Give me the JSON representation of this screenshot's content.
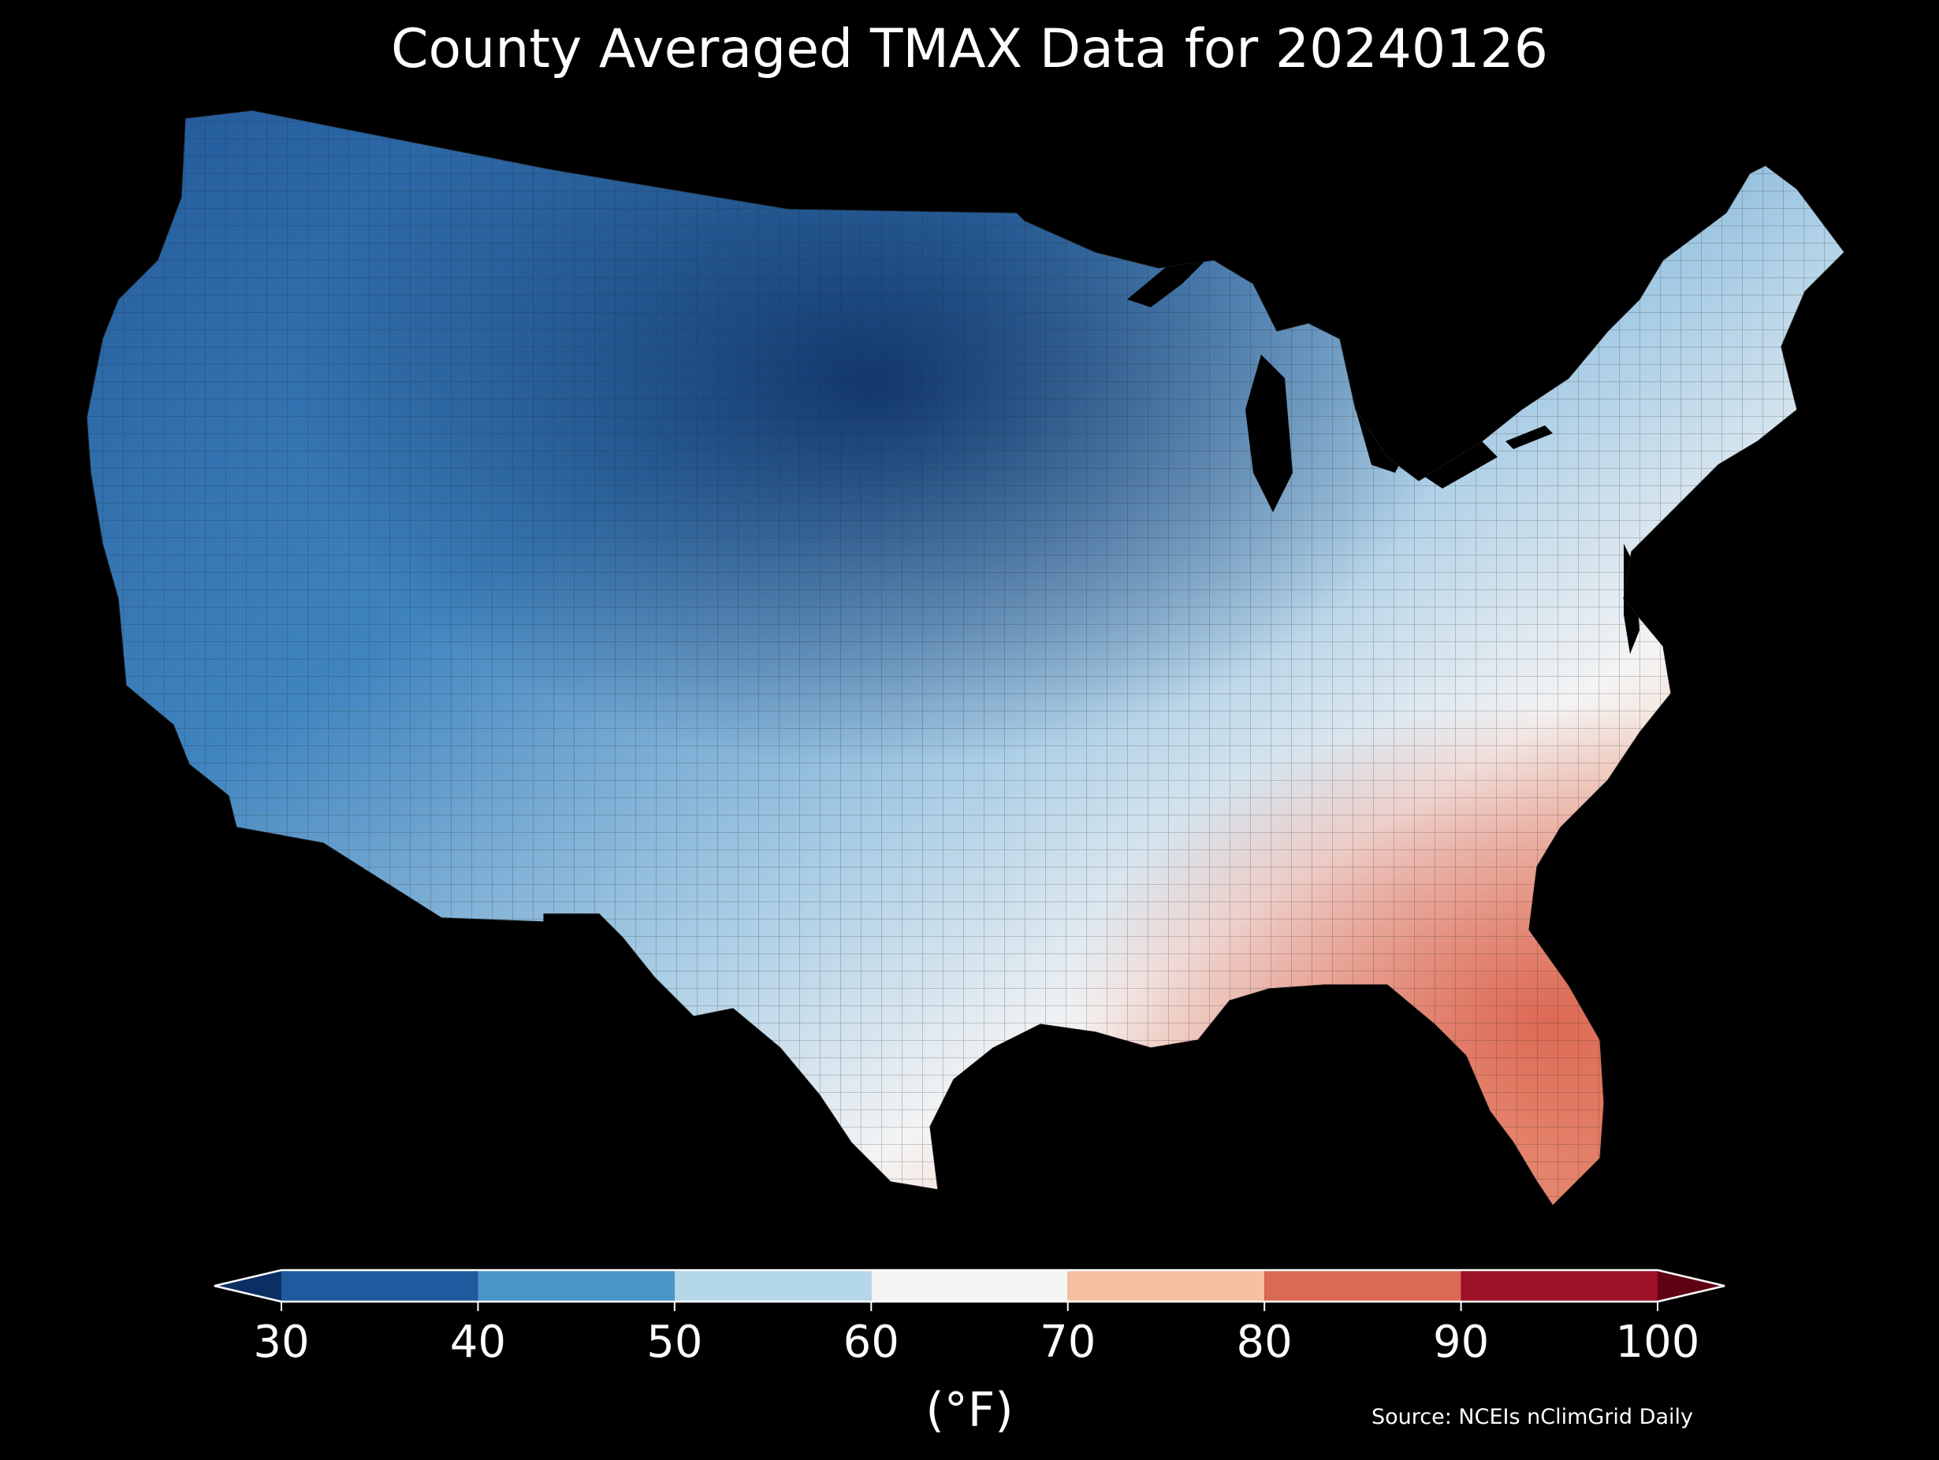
{
  "title": "County Averaged TMAX Data for 20240126",
  "colorbar": {
    "ticks": [
      "30",
      "40",
      "50",
      "60",
      "70",
      "80",
      "90",
      "100"
    ],
    "unit": "(°F)",
    "bins": [
      {
        "range": [
          30,
          40
        ],
        "color": "#1f5a9e"
      },
      {
        "range": [
          40,
          50
        ],
        "color": "#4a96c8"
      },
      {
        "range": [
          50,
          60
        ],
        "color": "#b5d7ea"
      },
      {
        "range": [
          60,
          70
        ],
        "color": "#f5f5f5"
      },
      {
        "range": [
          70,
          80
        ],
        "color": "#f8c0a2"
      },
      {
        "range": [
          80,
          90
        ],
        "color": "#db6a55"
      },
      {
        "range": [
          90,
          100
        ],
        "color": "#9c1028"
      }
    ],
    "under_color": "#0c2f63",
    "over_color": "#5f0013"
  },
  "source": "Source: NCEIs nClimGrid Daily"
}
